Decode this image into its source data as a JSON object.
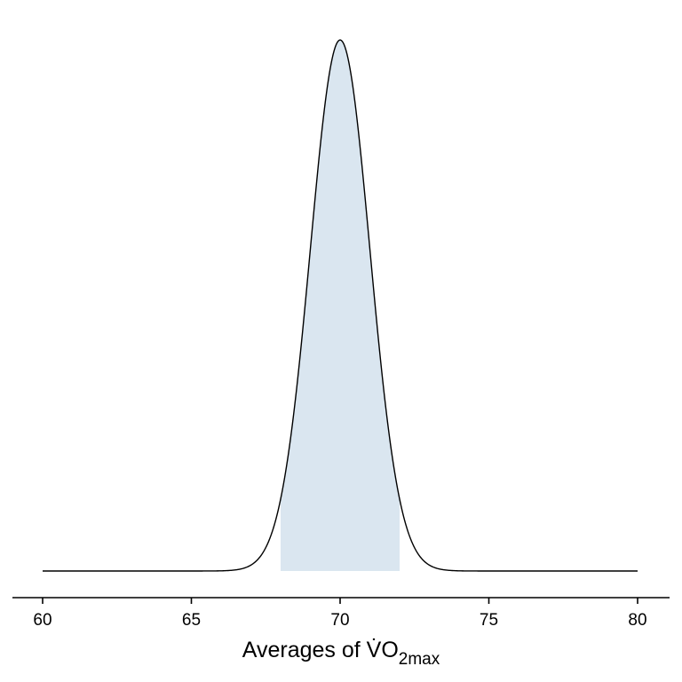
{
  "chart_data": {
    "type": "area",
    "title": "",
    "xlabel": {
      "main": "Averages of V̇O",
      "subscript": "2max"
    },
    "ylabel": "",
    "distribution": {
      "kind": "normal",
      "mean": 70,
      "sd": 1.0
    },
    "xlim": [
      60,
      80
    ],
    "x_ticks": [
      "60",
      "65",
      "70",
      "75",
      "80"
    ],
    "y_axis_visible": false,
    "shaded_region": {
      "from": 68,
      "to": 72,
      "color": "#dae6f0"
    },
    "curve_color": "#000000",
    "grid": false
  }
}
